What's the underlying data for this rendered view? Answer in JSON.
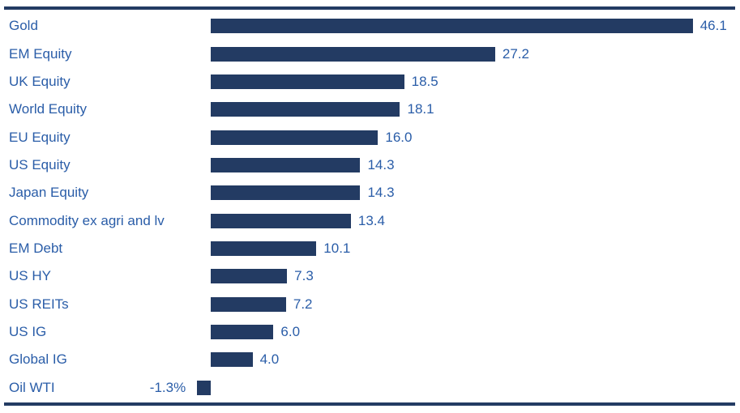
{
  "chart_data": {
    "type": "bar",
    "orientation": "horizontal",
    "title": "",
    "xlabel": "",
    "ylabel": "",
    "grid": false,
    "legend": false,
    "xlim": [
      -2.5,
      50
    ],
    "categories": [
      "Gold",
      "EM Equity",
      "UK Equity",
      "World Equity",
      "EU Equity",
      "US Equity",
      "Japan Equity",
      "Commodity ex agri and lv",
      "EM Debt",
      "US HY",
      "US REITs",
      "US IG",
      "Global IG",
      "Oil WTI"
    ],
    "values": [
      46.1,
      27.2,
      18.5,
      18.1,
      16.0,
      14.3,
      14.3,
      13.4,
      10.1,
      7.3,
      7.2,
      6.0,
      4.0,
      -1.3
    ],
    "value_labels": [
      "46.1",
      "27.2",
      "18.5",
      "18.1",
      "16.0",
      "14.3",
      "14.3",
      "13.4",
      "10.1",
      "7.3",
      "7.2",
      "6.0",
      "4.0",
      "-1.3%"
    ],
    "bar_color": "#233B63",
    "label_color": "#2A5DA8",
    "rule_color": "#233B63"
  }
}
